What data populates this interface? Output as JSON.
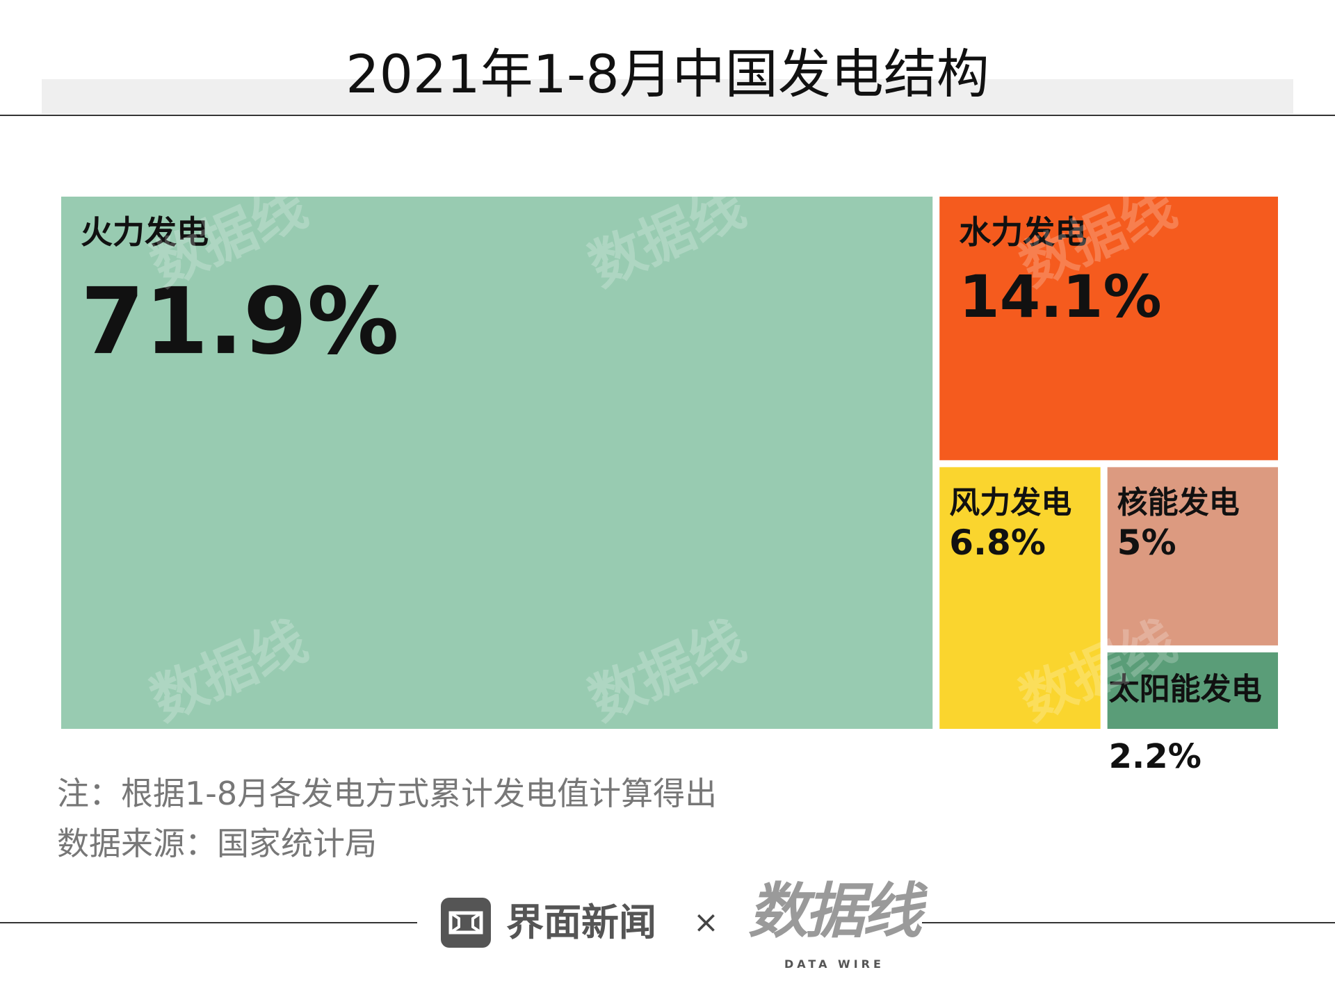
{
  "title": "2021年1-8月中国发电结构",
  "chart_data": {
    "type": "treemap",
    "title": "2021年1-8月中国发电结构",
    "series": [
      {
        "name": "火力发电",
        "value": 71.9,
        "label": "71.9%",
        "color": "#98cbb1"
      },
      {
        "name": "水力发电",
        "value": 14.1,
        "label": "14.1%",
        "color": "#f55b1e"
      },
      {
        "name": "风力发电",
        "value": 6.8,
        "label": "6.8%",
        "color": "#fad52e"
      },
      {
        "name": "核能发电",
        "value": 5,
        "label": "5%",
        "color": "#dc9a80"
      },
      {
        "name": "太阳能发电",
        "value": 2.2,
        "label": "2.2%",
        "color": "#5a9d78"
      }
    ]
  },
  "notes": {
    "note": "注：根据1-8月各发电方式累计发电值计算得出",
    "source": "数据来源：国家统计局"
  },
  "footer": {
    "brand": "界面新闻",
    "times": "×",
    "partner": "数据线",
    "partner_sub": "DATA WIRE"
  },
  "watermark": "数据线"
}
